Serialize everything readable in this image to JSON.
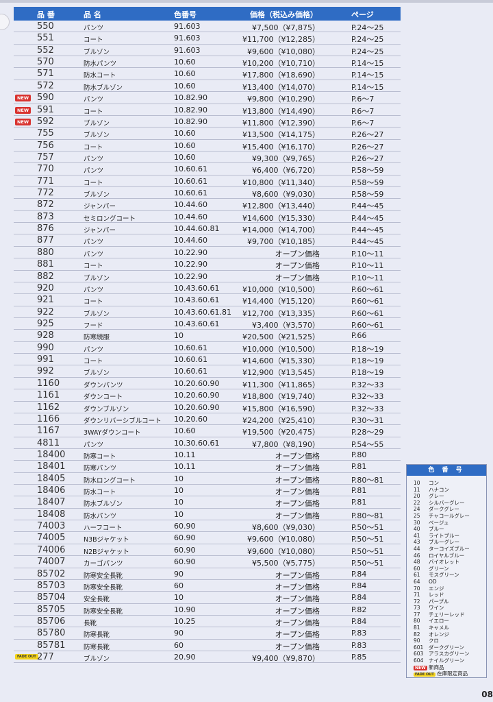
{
  "header": {
    "no": "品 番",
    "name": "品 名",
    "color": "色番号",
    "price": "価格（税込み価格）",
    "page": "ページ"
  },
  "tags": {
    "new": "NEW",
    "fade": "FADE OUT"
  },
  "rows": [
    [
      "",
      "550",
      "パンツ",
      "91.603",
      "¥7,500（¥7,875）",
      "P.24～25"
    ],
    [
      "",
      "551",
      "コート",
      "91.603",
      "¥11,700（¥12,285）",
      "P.24～25"
    ],
    [
      "",
      "552",
      "ブルゾン",
      "91.603",
      "¥9,600（¥10,080）",
      "P.24～25"
    ],
    [
      "",
      "570",
      "防水パンツ",
      "10.60",
      "¥10,200（¥10,710）",
      "P.14～15"
    ],
    [
      "",
      "571",
      "防水コート",
      "10.60",
      "¥17,800（¥18,690）",
      "P.14～15"
    ],
    [
      "",
      "572",
      "防水ブルゾン",
      "10.60",
      "¥13,400（¥14,070）",
      "P.14～15"
    ],
    [
      "new",
      "590",
      "パンツ",
      "10.82.90",
      "¥9,800（¥10,290）",
      "P.6～7"
    ],
    [
      "new",
      "591",
      "コート",
      "10.82.90",
      "¥13,800（¥14,490）",
      "P.6～7"
    ],
    [
      "new",
      "592",
      "ブルゾン",
      "10.82.90",
      "¥11,800（¥12,390）",
      "P.6～7"
    ],
    [
      "",
      "755",
      "ブルゾン",
      "10.60",
      "¥13,500（¥14,175）",
      "P.26～27"
    ],
    [
      "",
      "756",
      "コート",
      "10.60",
      "¥15,400（¥16,170）",
      "P.26～27"
    ],
    [
      "",
      "757",
      "パンツ",
      "10.60",
      "¥9,300（¥9,765）",
      "P.26～27"
    ],
    [
      "",
      "770",
      "パンツ",
      "10.60.61",
      "¥6,400（¥6,720）",
      "P.58～59"
    ],
    [
      "",
      "771",
      "コート",
      "10.60.61",
      "¥10,800（¥11,340）",
      "P.58～59"
    ],
    [
      "",
      "772",
      "ブルゾン",
      "10.60.61",
      "¥8,600（¥9,030）",
      "P.58～59"
    ],
    [
      "",
      "872",
      "ジャンパー",
      "10.44.60",
      "¥12,800（¥13,440）",
      "P.44～45"
    ],
    [
      "",
      "873",
      "セミロングコート",
      "10.44.60",
      "¥14,600（¥15,330）",
      "P.44～45"
    ],
    [
      "",
      "876",
      "ジャンパー",
      "10.44.60.81",
      "¥14,000（¥14,700）",
      "P.44～45"
    ],
    [
      "",
      "877",
      "パンツ",
      "10.44.60",
      "¥9,700（¥10,185）",
      "P.44～45"
    ],
    [
      "",
      "880",
      "パンツ",
      "10.22.90",
      "オープン価格",
      "P.10～11"
    ],
    [
      "",
      "881",
      "コート",
      "10.22.90",
      "オープン価格",
      "P.10～11"
    ],
    [
      "",
      "882",
      "ブルゾン",
      "10.22.90",
      "オープン価格",
      "P.10～11"
    ],
    [
      "",
      "920",
      "パンツ",
      "10.43.60.61",
      "¥10,000（¥10,500）",
      "P.60～61"
    ],
    [
      "",
      "921",
      "コート",
      "10.43.60.61",
      "¥14,400（¥15,120）",
      "P.60～61"
    ],
    [
      "",
      "922",
      "ブルゾン",
      "10.43.60.61.81",
      "¥12,700（¥13,335）",
      "P.60～61"
    ],
    [
      "",
      "925",
      "フード",
      "10.43.60.61",
      "¥3,400（¥3,570）",
      "P.60～61"
    ],
    [
      "",
      "928",
      "防寒続服",
      "10",
      "¥20,500（¥21,525）",
      "P.66"
    ],
    [
      "",
      "990",
      "パンツ",
      "10.60.61",
      "¥10,000（¥10,500）",
      "P.18～19"
    ],
    [
      "",
      "991",
      "コート",
      "10.60.61",
      "¥14,600（¥15,330）",
      "P.18～19"
    ],
    [
      "",
      "992",
      "ブルゾン",
      "10.60.61",
      "¥12,900（¥13,545）",
      "P.18～19"
    ],
    [
      "",
      "1160",
      "ダウンパンツ",
      "10.20.60.90",
      "¥11,300（¥11,865）",
      "P.32～33"
    ],
    [
      "",
      "1161",
      "ダウンコート",
      "10.20.60.90",
      "¥18,800（¥19,740）",
      "P.32～33"
    ],
    [
      "",
      "1162",
      "ダウンブルゾン",
      "10.20.60.90",
      "¥15,800（¥16,590）",
      "P.32～33"
    ],
    [
      "",
      "1166",
      "ダウンリバーシブルコート",
      "10.20.60",
      "¥24,200（¥25,410）",
      "P.30～31"
    ],
    [
      "",
      "1167",
      "3WAYダウンコート",
      "10.60",
      "¥19,500（¥20,475）",
      "P.28～29"
    ],
    [
      "",
      "4811",
      "パンツ",
      "10.30.60.61",
      "¥7,800（¥8,190）",
      "P.54～55"
    ],
    [
      "",
      "18400",
      "防寒コート",
      "10.11",
      "オープン価格",
      "P.80"
    ],
    [
      "",
      "18401",
      "防寒パンツ",
      "10.11",
      "オープン価格",
      "P.81"
    ],
    [
      "",
      "18405",
      "防水ロングコート",
      "10",
      "オープン価格",
      "P.80～81"
    ],
    [
      "",
      "18406",
      "防水コート",
      "10",
      "オープン価格",
      "P.81"
    ],
    [
      "",
      "18407",
      "防水ブルゾン",
      "10",
      "オープン価格",
      "P.81"
    ],
    [
      "",
      "18408",
      "防水パンツ",
      "10",
      "オープン価格",
      "P.80～81"
    ],
    [
      "",
      "74003",
      "ハーフコート",
      "60.90",
      "¥8,600（¥9,030）",
      "P.50～51"
    ],
    [
      "",
      "74005",
      "N3Bジャケット",
      "60.90",
      "¥9,600（¥10,080）",
      "P.50～51"
    ],
    [
      "",
      "74006",
      "N2Bジャケット",
      "60.90",
      "¥9,600（¥10,080）",
      "P.50～51"
    ],
    [
      "",
      "74007",
      "カーゴパンツ",
      "60.90",
      "¥5,500（¥5,775）",
      "P.50～51"
    ],
    [
      "",
      "85702",
      "防寒安全長靴",
      "90",
      "オープン価格",
      "P.84"
    ],
    [
      "",
      "85703",
      "防寒安全長靴",
      "60",
      "オープン価格",
      "P.84"
    ],
    [
      "",
      "85704",
      "安全長靴",
      "10",
      "オープン価格",
      "P.84"
    ],
    [
      "",
      "85705",
      "防寒安全長靴",
      "10.90",
      "オープン価格",
      "P.82"
    ],
    [
      "",
      "85706",
      "長靴",
      "10.25",
      "オープン価格",
      "P.84"
    ],
    [
      "",
      "85780",
      "防寒長靴",
      "90",
      "オープン価格",
      "P.83"
    ],
    [
      "",
      "85781",
      "防寒長靴",
      "60",
      "オープン価格",
      "P.83"
    ],
    [
      "fade",
      "277",
      "ブルゾン",
      "20.90",
      "¥9,400（¥9,870）",
      "P.85"
    ]
  ],
  "legend": {
    "title": "色 番 号",
    "items": [
      [
        "10",
        "コン"
      ],
      [
        "11",
        "ハナコン"
      ],
      [
        "20",
        "グレー"
      ],
      [
        "22",
        "シルバーグレー"
      ],
      [
        "24",
        "ダークグレー"
      ],
      [
        "25",
        "チャコールグレー"
      ],
      [
        "30",
        "ベージュ"
      ],
      [
        "40",
        "ブルー"
      ],
      [
        "41",
        "ライトブルー"
      ],
      [
        "43",
        "ブルーグレー"
      ],
      [
        "44",
        "ターコイズブルー"
      ],
      [
        "46",
        "ロイヤルブルー"
      ],
      [
        "48",
        "バイオレット"
      ],
      [
        "60",
        "グリーン"
      ],
      [
        "61",
        "モスグリーン"
      ],
      [
        "64",
        "OD"
      ],
      [
        "70",
        "エンジ"
      ],
      [
        "71",
        "レッド"
      ],
      [
        "72",
        "パープル"
      ],
      [
        "73",
        "ワイン"
      ],
      [
        "77",
        "チェリーレッド"
      ],
      [
        "80",
        "イエロー"
      ],
      [
        "81",
        "キャメル"
      ],
      [
        "82",
        "オレンジ"
      ],
      [
        "90",
        "クロ"
      ],
      [
        "601",
        "ダークグリーン"
      ],
      [
        "603",
        "アラスカグリーン"
      ],
      [
        "604",
        "ナイルグリーン"
      ]
    ],
    "new_label": "新商品",
    "fade_label": "在庫限定商品"
  },
  "page_number": "08",
  "colors": {
    "header": "#2f6cc4",
    "new": "#d9322f",
    "fade": "#f2d21a"
  }
}
